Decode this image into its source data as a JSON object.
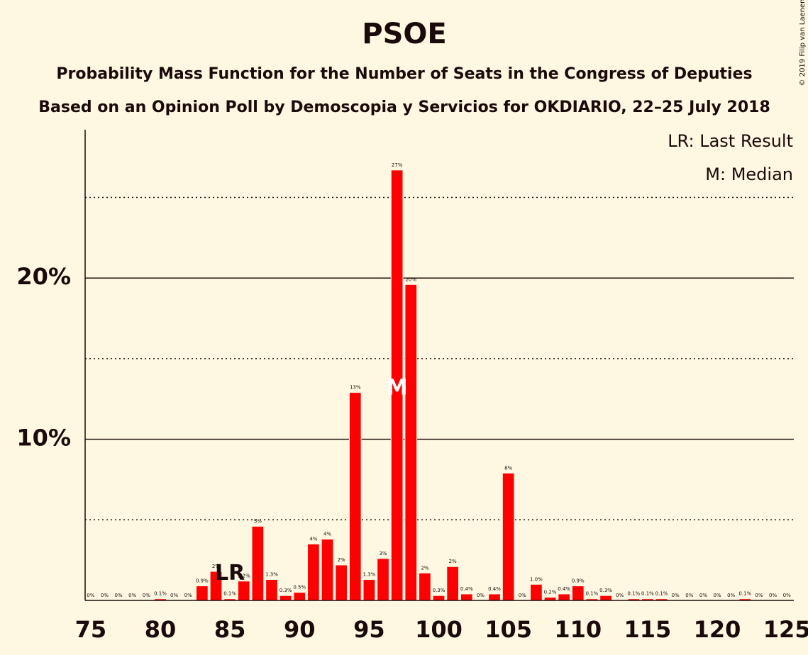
{
  "chart_data": {
    "type": "bar",
    "title": "PSOE",
    "subtitle": [
      "Probability Mass Function for the Number of Seats in the Congress of Deputies",
      "Based on an Opinion Poll by Demoscopia y Servicios for OKDIARIO, 22–25 July 2018"
    ],
    "copyright": "© 2019 Filip van Laenen",
    "legend": [
      "LR: Last Result",
      "M: Median"
    ],
    "x": [
      75,
      76,
      77,
      78,
      79,
      80,
      81,
      82,
      83,
      84,
      85,
      86,
      87,
      88,
      89,
      90,
      91,
      92,
      93,
      94,
      95,
      96,
      97,
      98,
      99,
      100,
      101,
      102,
      103,
      104,
      105,
      106,
      107,
      108,
      109,
      110,
      111,
      112,
      113,
      114,
      115,
      116,
      117,
      118,
      119,
      120,
      121,
      122,
      123,
      124,
      125
    ],
    "values": [
      0,
      0,
      0,
      0,
      0,
      0.1,
      0,
      0,
      0.9,
      1.8,
      0.1,
      1.2,
      4.6,
      1.3,
      0.3,
      0.5,
      3.5,
      3.8,
      2.2,
      12.9,
      1.3,
      2.6,
      26.7,
      19.6,
      1.7,
      0.3,
      2.1,
      0.4,
      0,
      0.4,
      7.9,
      0,
      1.0,
      0.2,
      0.4,
      0.9,
      0.1,
      0.3,
      0,
      0.1,
      0.1,
      0.1,
      0,
      0,
      0,
      0,
      0,
      0.1,
      0,
      0,
      0
    ],
    "value_labels": [
      "0%",
      "0%",
      "0%",
      "0%",
      "0%",
      "0.1%",
      "0%",
      "0%",
      "0.9%",
      "2%",
      "0.1%",
      "1.2%",
      "5%",
      "1.3%",
      "0.3%",
      "0.5%",
      "4%",
      "4%",
      "2%",
      "13%",
      "1.3%",
      "3%",
      "27%",
      "20%",
      "2%",
      "0.3%",
      "2%",
      "0.4%",
      "0%",
      "0.4%",
      "8%",
      "0%",
      "1.0%",
      "0.2%",
      "0.4%",
      "0.9%",
      "0.1%",
      "0.3%",
      "0%",
      "0.1%",
      "0.1%",
      "0.1%",
      "0%",
      "0%",
      "0%",
      "0%",
      "0%",
      "0.1%",
      "0%",
      "0%",
      "0%"
    ],
    "color": "#ff0000",
    "xlim": [
      74.6,
      125.5
    ],
    "xticks": [
      75,
      80,
      85,
      90,
      95,
      100,
      105,
      110,
      115,
      120,
      125
    ],
    "ylim": [
      0,
      29.2
    ],
    "yticks": [
      {
        "value": 10,
        "label": "10%"
      },
      {
        "value": 20,
        "label": "20%"
      }
    ],
    "minor_yticks": [
      5,
      15,
      25
    ],
    "grid": true,
    "last_result": 85,
    "last_result_label": "LR",
    "median": 97,
    "median_label": "M"
  }
}
